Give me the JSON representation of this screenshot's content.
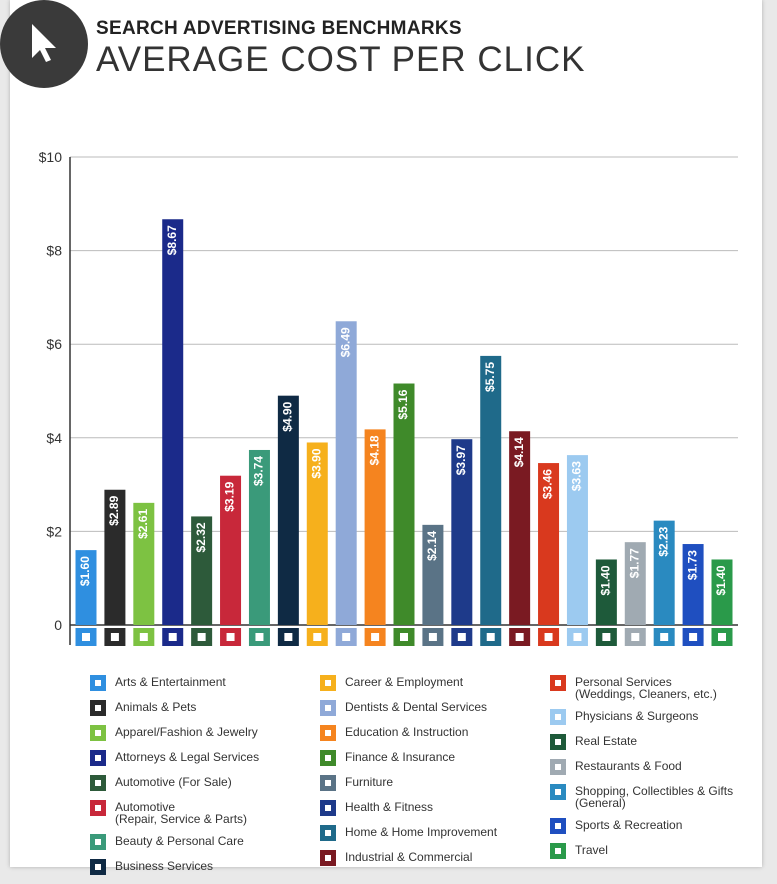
{
  "chart_data": {
    "type": "bar",
    "subtitle": "SEARCH ADVERTISING BENCHMARKS",
    "title": "AVERAGE COST PER CLICK",
    "categories": [
      "Arts & Entertainment",
      "Animals & Pets",
      "Apparel/Fashion & Jewelry",
      "Attorneys & Legal Services",
      "Automotive (For Sale)",
      "Automotive\n(Repair, Service & Parts)",
      "Beauty & Personal Care",
      "Business Services",
      "Career & Employment",
      "Dentists & Dental Services",
      "Education & Instruction",
      "Finance & Insurance",
      "Furniture",
      "Health & Fitness",
      "Home & Home Improvement",
      "Industrial & Commercial",
      "Personal Services\n(Weddings, Cleaners, etc.)",
      "Physicians & Surgeons",
      "Real Estate",
      "Restaurants & Food",
      "Shopping, Collectibles & Gifts\n(General)",
      "Sports & Recreation",
      "Travel"
    ],
    "values": [
      1.6,
      2.89,
      2.61,
      8.67,
      2.32,
      3.19,
      3.74,
      4.9,
      3.9,
      6.49,
      4.18,
      5.16,
      2.14,
      3.97,
      5.75,
      4.14,
      3.46,
      3.63,
      1.4,
      1.77,
      2.23,
      1.73,
      1.4
    ],
    "value_labels": [
      "$1.60",
      "$2.89",
      "$2.61",
      "$8.67",
      "$2.32",
      "$3.19",
      "$3.74",
      "$4.90",
      "$3.90",
      "$6.49",
      "$4.18",
      "$5.16",
      "$2.14",
      "$3.97",
      "$5.75",
      "$4.14",
      "$3.46",
      "$3.63",
      "$1.40",
      "$1.77",
      "$2.23",
      "$1.73",
      "$1.40"
    ],
    "colors": [
      "#2f8fe0",
      "#2b2b2b",
      "#7dc242",
      "#1b2a8a",
      "#2d5a3a",
      "#c8283a",
      "#3a9a7a",
      "#0f2a44",
      "#f6b01c",
      "#8fa9d8",
      "#f5841f",
      "#3f8a2a",
      "#5a7386",
      "#1e3a8a",
      "#1f6a8a",
      "#7a1a22",
      "#d9391e",
      "#9ccaf0",
      "#1e5a3a",
      "#a0aab2",
      "#2a8ac0",
      "#1f4fc0",
      "#2a9a4a"
    ],
    "ylim": [
      0,
      10
    ],
    "yticks": [
      0,
      {
        "value": 2,
        "label": "$2"
      },
      {
        "value": 4,
        "label": "$4"
      },
      {
        "value": 6,
        "label": "$6"
      },
      {
        "value": 8,
        "label": "$8"
      },
      {
        "value": 10,
        "label": "$10"
      }
    ],
    "grid": true
  }
}
